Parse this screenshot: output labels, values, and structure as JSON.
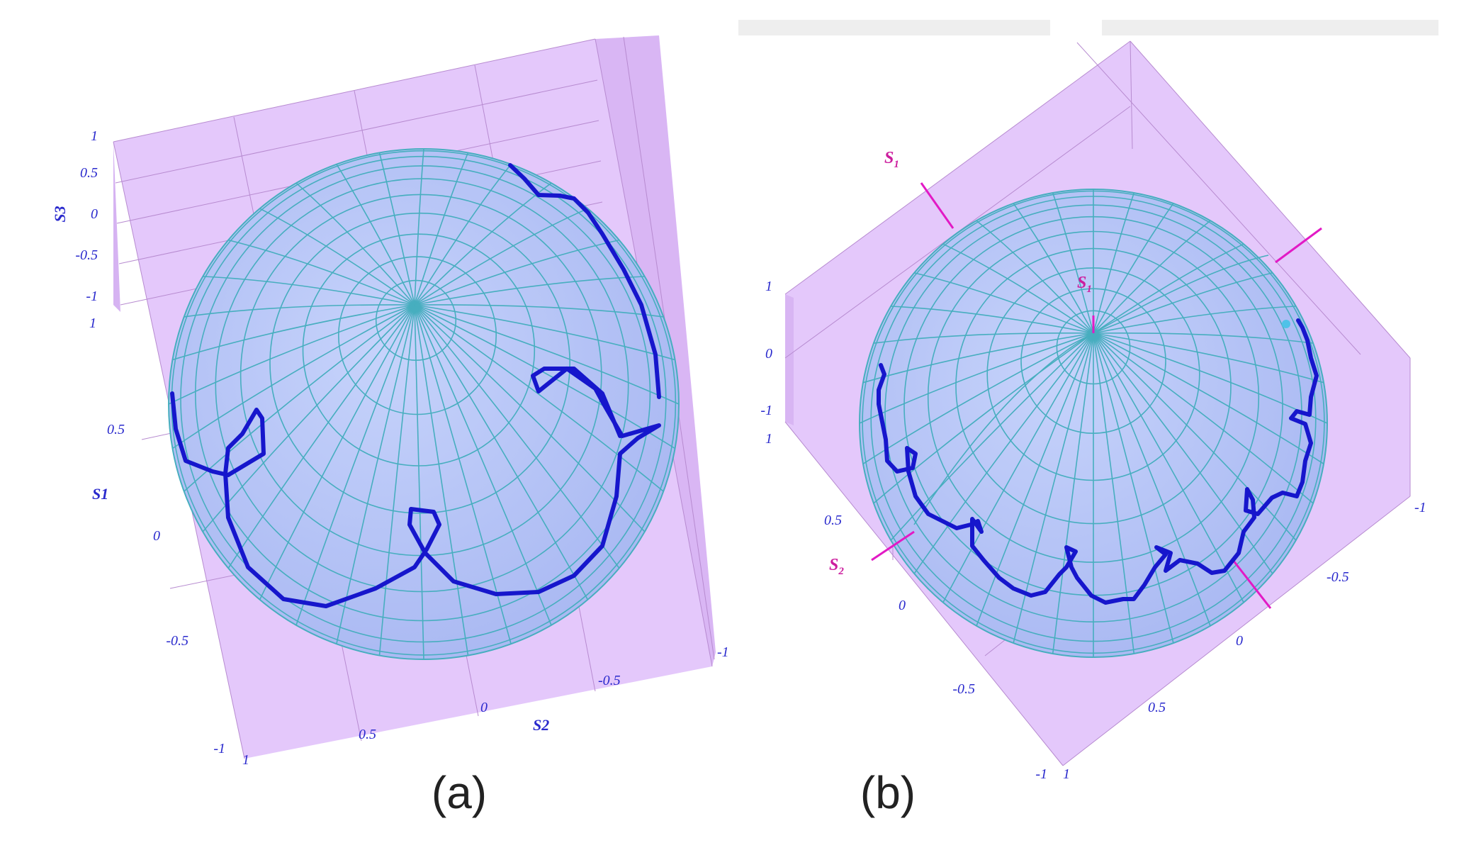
{
  "figure": {
    "panel_a": {
      "label": "(a)",
      "axes": {
        "s3": {
          "name": "S3",
          "ticks": [
            "1",
            "0.5",
            "0",
            "-0.5",
            "-1"
          ]
        },
        "s1": {
          "name": "S1",
          "ticks": [
            "1",
            "0.5",
            "0",
            "-0.5",
            "-1"
          ]
        },
        "s2": {
          "name": "S2",
          "ticks": [
            "1",
            "0.5",
            "0",
            "-0.5",
            "-1"
          ]
        }
      }
    },
    "panel_b": {
      "label": "(b)",
      "marker_labels": {
        "s1_top": "S",
        "s1_top_sub": "1",
        "s1_center": "S",
        "s1_center_sub": "1",
        "s2": "S",
        "s2_sub": "2"
      },
      "axes": {
        "vertical": {
          "ticks": [
            "1",
            "0",
            "-1"
          ]
        },
        "left": {
          "ticks": [
            "1",
            "0.5",
            "0",
            "-0.5",
            "-1"
          ]
        },
        "bottom": {
          "ticks": [
            "1",
            "0.5",
            "0",
            "-0.5",
            "-1"
          ]
        },
        "right": {
          "ticks": [
            "-0.5",
            "-1"
          ]
        }
      }
    },
    "colors": {
      "box_face": "#e4c8fb",
      "sphere_fill": "#b9c7f7",
      "mesh_line": "#47aebf",
      "trajectory": "#1616cc",
      "axis_marker": "#e21ac5",
      "tick_text": "#2a2acd"
    }
  }
}
